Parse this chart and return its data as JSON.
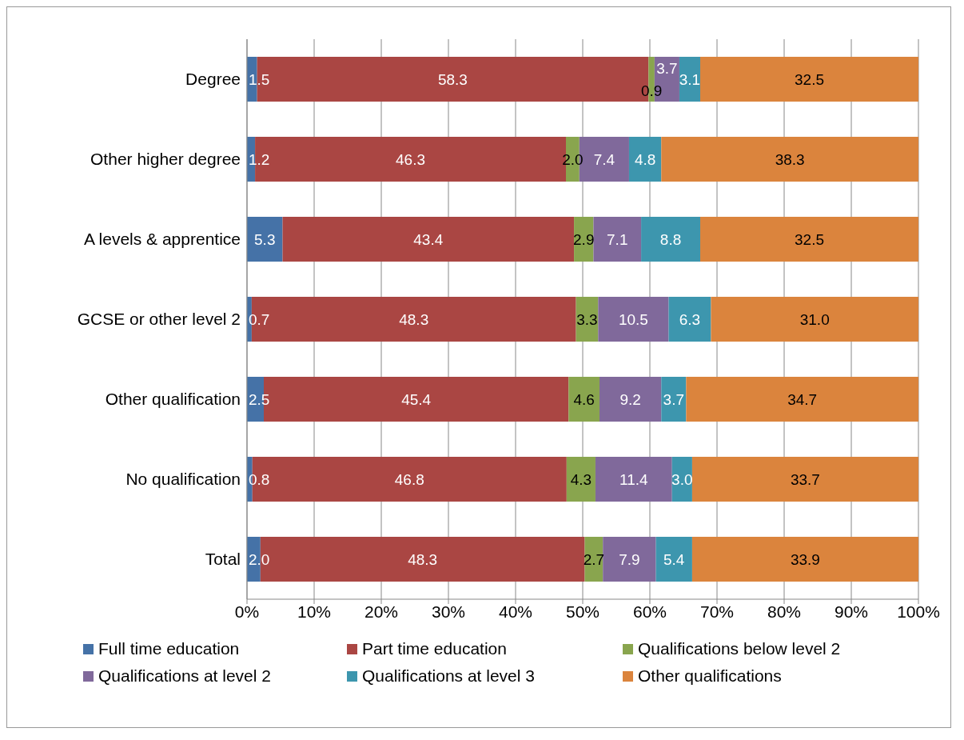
{
  "chart_data": {
    "type": "bar",
    "orientation": "horizontal",
    "stacked": true,
    "grid": "x",
    "legend": "bottom",
    "categories": [
      "Degree",
      "Other higher degree",
      "A levels & apprentice",
      "GCSE or other level 2",
      "Other qualification",
      "No qualification",
      "Total"
    ],
    "xlim": [
      0,
      100
    ],
    "xticks": [
      {
        "value": 0,
        "label": "0%"
      },
      {
        "value": 10,
        "label": "10%"
      },
      {
        "value": 20,
        "label": "20%"
      },
      {
        "value": 30,
        "label": "30%"
      },
      {
        "value": 40,
        "label": "40%"
      },
      {
        "value": 50,
        "label": "50%"
      },
      {
        "value": 60,
        "label": "60%"
      },
      {
        "value": 70,
        "label": "70%"
      },
      {
        "value": 80,
        "label": "80%"
      },
      {
        "value": 90,
        "label": "90%"
      },
      {
        "value": 100,
        "label": "100%"
      }
    ],
    "series": [
      {
        "name": "Full time education",
        "color": "#4572a7",
        "values": [
          1.5,
          1.2,
          5.3,
          0.7,
          2.5,
          0.8,
          2.0
        ],
        "value_labels": [
          "1.5",
          "1.2",
          "5.3",
          "0.7",
          "2.5",
          "0.8",
          "2.0"
        ]
      },
      {
        "name": "Part time education",
        "color": "#aa4643",
        "values": [
          58.3,
          46.3,
          43.4,
          48.3,
          45.4,
          46.8,
          48.3
        ],
        "value_labels": [
          "58.3",
          "46.3",
          "43.4",
          "48.3",
          "45.4",
          "46.8",
          "48.3"
        ]
      },
      {
        "name": "Qualifications below level 2",
        "color": "#89a54e",
        "values": [
          0.9,
          2.0,
          2.9,
          3.3,
          4.6,
          4.3,
          2.7
        ],
        "value_labels": [
          "0.9",
          "2.0",
          "2.9",
          "3.3",
          "4.6",
          "4.3",
          "2.7"
        ]
      },
      {
        "name": "Qualifications at level 2",
        "color": "#80699b",
        "values": [
          3.7,
          7.4,
          7.1,
          10.5,
          9.2,
          11.4,
          7.9
        ],
        "value_labels": [
          "3.7",
          "7.4",
          "7.1",
          "10.5",
          "9.2",
          "11.4",
          "7.9"
        ]
      },
      {
        "name": "Qualifications at level 3",
        "color": "#3d96ae",
        "values": [
          3.1,
          4.8,
          8.8,
          6.3,
          3.7,
          3.0,
          5.4
        ],
        "value_labels": [
          "3.1",
          "4.8",
          "8.8",
          "6.3",
          "3.7",
          "3.0",
          "5.4"
        ]
      },
      {
        "name": "Other qualifications",
        "color": "#db843d",
        "values": [
          32.5,
          38.3,
          32.5,
          31.0,
          34.7,
          33.7,
          33.9
        ],
        "value_labels": [
          "32.5",
          "38.3",
          "32.5",
          "31.0",
          "34.7",
          "33.7",
          "33.9"
        ]
      }
    ]
  }
}
